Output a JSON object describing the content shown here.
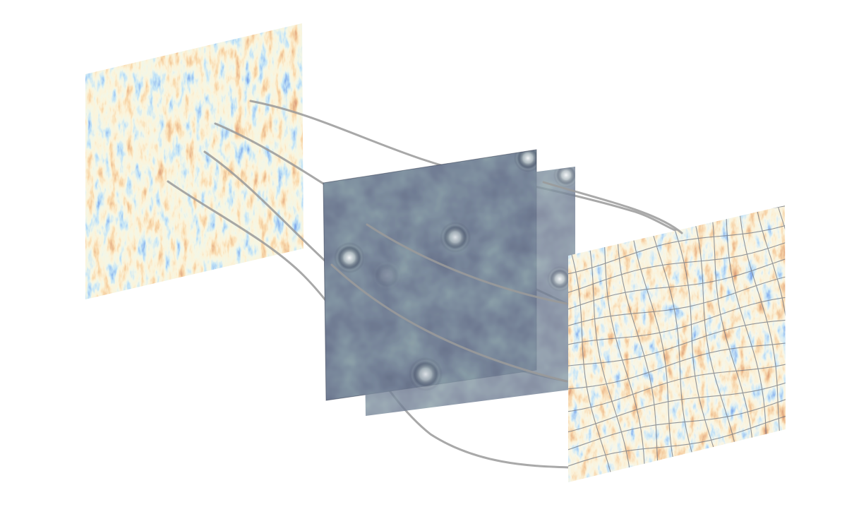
{
  "diagram": {
    "panels": [
      {
        "role": "source-field",
        "colormap": "diverging-blue-orange",
        "has_grid_overlay": false
      },
      {
        "role": "lens-plane-back",
        "colormap": "dark-slate",
        "bright_spots": 3
      },
      {
        "role": "lens-plane-front",
        "colormap": "dark-slate",
        "bright_spots": 3
      },
      {
        "role": "observed-field",
        "colormap": "diverging-blue-orange",
        "has_grid_overlay": true
      }
    ],
    "ray_paths": 5,
    "colors": {
      "background": "#ffffff",
      "blue_deep": "#1f3fb8",
      "blue_light": "#7fc3e8",
      "cream": "#f3e8bf",
      "orange": "#e69a48",
      "red": "#b5482a",
      "lens_dark": "#27304a",
      "lens_teal": "#4a6a6c",
      "ray": "#9a9a9a"
    }
  }
}
